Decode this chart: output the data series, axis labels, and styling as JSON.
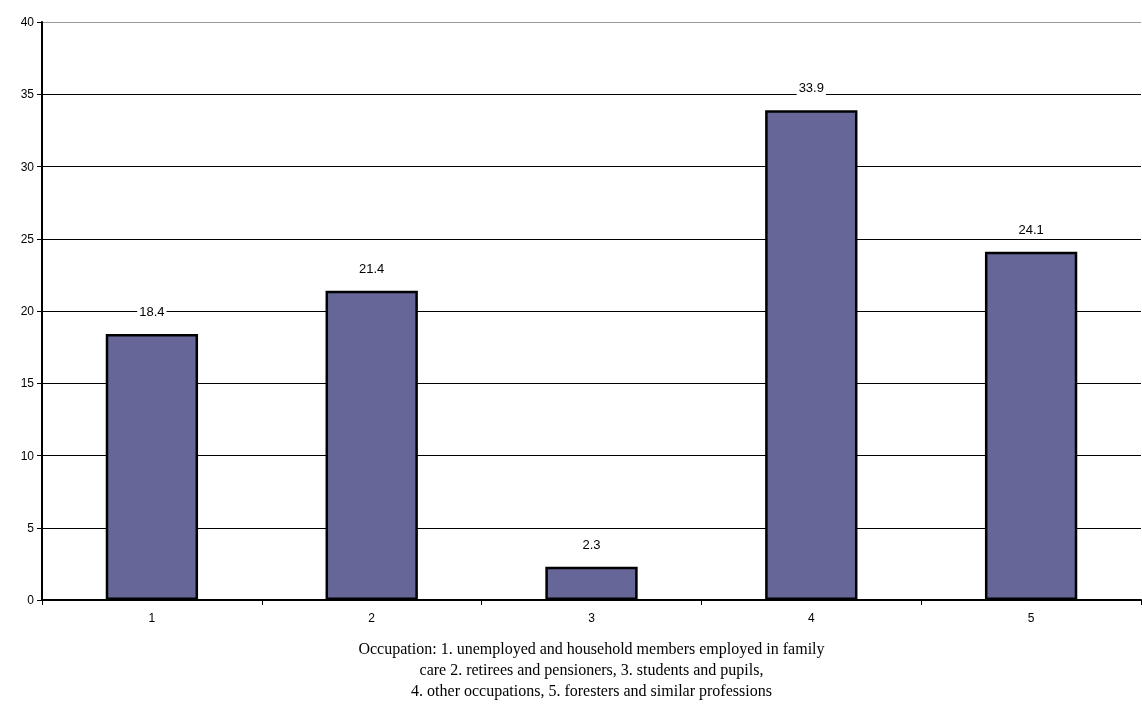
{
  "chart_data": {
    "type": "bar",
    "xlabel": "Occupation: 1. unemployed and household members employed in family\ncare 2. retirees and pensioners, 3. students and pupils,\n4. other occupations, 5. foresters and similar professions",
    "categories": [
      "1",
      "2",
      "3",
      "4",
      "5"
    ],
    "values": [
      18.4,
      21.4,
      2.3,
      33.9,
      24.1
    ],
    "color": "#666699",
    "ylim": [
      0,
      40
    ],
    "yticks": [
      0,
      5,
      10,
      15,
      20,
      25,
      30,
      35,
      40
    ],
    "grid": "y",
    "data_labels": true
  }
}
